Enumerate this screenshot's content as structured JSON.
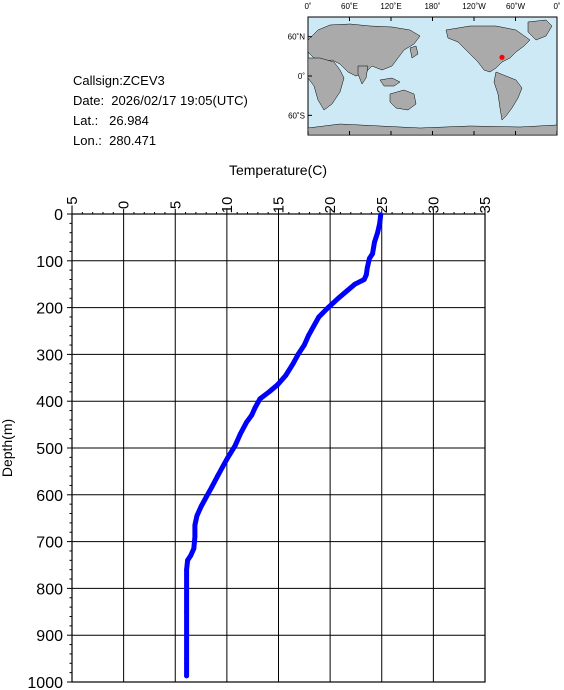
{
  "station": {
    "callsign": "Callsign:ZCEV3",
    "date": "Date:  2026/02/17 19:05(UTC)",
    "lat": "Lat.:   26.984",
    "lon": "Lon.:  280.471"
  },
  "map": {
    "lon_labels": [
      "0˚",
      "60˚E",
      "120˚E",
      "180˚",
      "120˚W",
      "60˚W",
      "0˚"
    ],
    "lat_labels": [
      "60˚N",
      "0˚",
      "60˚S"
    ],
    "ocean_color": "#cde9f5",
    "land_color": "#aaaaaa",
    "marker_color": "#ff0000",
    "marker": {
      "lat": 26.984,
      "lon": 280.471
    }
  },
  "chart_data": {
    "type": "line",
    "title": "",
    "xlabel": "Temperature(C)",
    "ylabel": "Depth(m)",
    "xlim": [
      -5,
      35
    ],
    "ylim": [
      0,
      1000
    ],
    "x_ticks": [
      "−5",
      "0",
      "5",
      "10",
      "15",
      "20",
      "25",
      "30",
      "35"
    ],
    "y_ticks": [
      "0",
      "100",
      "200",
      "300",
      "400",
      "500",
      "600",
      "700",
      "800",
      "900",
      "1000"
    ],
    "y_inverted": true,
    "grid": true,
    "line_color": "#0000ff",
    "series": [
      {
        "points": [
          [
            24.9,
            2
          ],
          [
            24.8,
            20
          ],
          [
            24.6,
            40
          ],
          [
            24.3,
            60
          ],
          [
            24.1,
            85
          ],
          [
            23.8,
            95
          ],
          [
            23.6,
            115
          ],
          [
            23.5,
            130
          ],
          [
            23.3,
            140
          ],
          [
            22.4,
            150
          ],
          [
            21.6,
            165
          ],
          [
            20.8,
            180
          ],
          [
            19.8,
            200
          ],
          [
            18.9,
            220
          ],
          [
            18.4,
            240
          ],
          [
            17.9,
            260
          ],
          [
            17.5,
            280
          ],
          [
            16.9,
            300
          ],
          [
            16.4,
            320
          ],
          [
            15.7,
            345
          ],
          [
            14.9,
            365
          ],
          [
            14.1,
            380
          ],
          [
            13.2,
            395
          ],
          [
            12.7,
            415
          ],
          [
            12.4,
            430
          ],
          [
            11.9,
            445
          ],
          [
            11.3,
            470
          ],
          [
            10.8,
            495
          ],
          [
            10.1,
            520
          ],
          [
            9.6,
            540
          ],
          [
            9.1,
            560
          ],
          [
            8.5,
            585
          ],
          [
            8.0,
            605
          ],
          [
            7.5,
            625
          ],
          [
            7.1,
            645
          ],
          [
            6.9,
            665
          ],
          [
            6.9,
            690
          ],
          [
            6.8,
            715
          ],
          [
            6.5,
            730
          ],
          [
            6.2,
            740
          ],
          [
            6.1,
            760
          ],
          [
            6.1,
            800
          ],
          [
            6.1,
            850
          ],
          [
            6.1,
            900
          ],
          [
            6.1,
            950
          ],
          [
            6.1,
            987
          ]
        ]
      }
    ]
  }
}
